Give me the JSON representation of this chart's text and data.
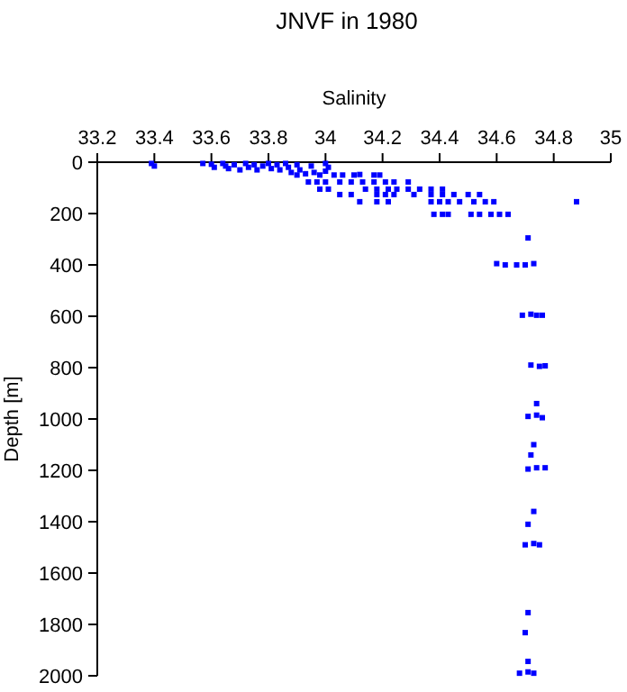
{
  "chart_data": {
    "type": "scatter",
    "title": "JNVF in 1980",
    "xlabel": "Salinity",
    "ylabel": "Depth [m]",
    "xlim": [
      33.2,
      35
    ],
    "xticks": [
      33.2,
      33.4,
      33.6,
      33.8,
      34,
      34.2,
      34.4,
      34.6,
      34.8,
      35
    ],
    "ylim": [
      2000,
      0
    ],
    "yticks": [
      0,
      200,
      400,
      600,
      800,
      1000,
      1200,
      1400,
      1600,
      1800,
      2000
    ],
    "grid": false,
    "marker": "square",
    "series": [
      {
        "color": "#0000ff",
        "x": [
          33.39,
          33.4,
          33.57,
          33.6,
          33.61,
          33.64,
          33.65,
          33.66,
          33.68,
          33.7,
          33.72,
          33.73,
          33.75,
          33.76,
          33.78,
          33.8,
          33.81,
          33.83,
          33.84,
          33.86,
          33.87,
          33.88,
          33.9,
          33.91,
          33.93,
          33.95,
          33.96,
          33.98,
          34.0,
          34.01,
          34.0,
          34.03,
          34.06,
          34.1,
          34.12,
          34.17,
          34.19,
          33.9,
          33.94,
          33.97,
          34.0,
          34.05,
          34.09,
          34.13,
          34.17,
          34.21,
          34.24,
          34.29,
          33.98,
          34.01,
          34.14,
          34.18,
          34.22,
          34.25,
          34.29,
          34.33,
          34.37,
          34.41,
          34.05,
          34.09,
          34.18,
          34.21,
          34.24,
          34.31,
          34.37,
          34.41,
          34.45,
          34.5,
          34.54,
          34.12,
          34.18,
          34.22,
          34.37,
          34.4,
          34.43,
          34.47,
          34.52,
          34.56,
          34.59,
          34.88,
          34.38,
          34.41,
          34.43,
          34.51,
          34.54,
          34.58,
          34.61,
          34.64,
          34.71,
          34.6,
          34.63,
          34.67,
          34.7,
          34.73,
          34.69,
          34.72,
          34.74,
          34.76,
          34.72,
          34.75,
          34.77,
          34.74,
          34.71,
          34.74,
          34.76,
          34.73,
          34.72,
          34.71,
          34.74,
          34.77,
          34.73,
          34.71,
          34.7,
          34.73,
          34.75,
          34.71,
          34.7,
          34.71,
          34.68,
          34.71,
          34.73
        ],
        "values": [
          5,
          15,
          5,
          8,
          20,
          5,
          15,
          25,
          10,
          30,
          5,
          20,
          10,
          30,
          15,
          5,
          25,
          10,
          30,
          5,
          20,
          40,
          10,
          30,
          45,
          15,
          40,
          50,
          5,
          20,
          35,
          50,
          50,
          50,
          48,
          50,
          50,
          50,
          77,
          77,
          77,
          77,
          77,
          77,
          77,
          77,
          77,
          77,
          105,
          105,
          105,
          105,
          105,
          105,
          105,
          105,
          105,
          105,
          126,
          126,
          126,
          126,
          126,
          126,
          126,
          126,
          126,
          126,
          126,
          154,
          154,
          154,
          154,
          154,
          154,
          154,
          154,
          154,
          154,
          154,
          203,
          203,
          203,
          203,
          203,
          203,
          203,
          203,
          295,
          395,
          400,
          400,
          400,
          395,
          596,
          592,
          596,
          596,
          790,
          795,
          793,
          940,
          990,
          985,
          995,
          1100,
          1140,
          1195,
          1190,
          1190,
          1360,
          1410,
          1490,
          1485,
          1490,
          1754,
          1832,
          1944,
          1990,
          1985,
          1990
        ]
      }
    ]
  }
}
